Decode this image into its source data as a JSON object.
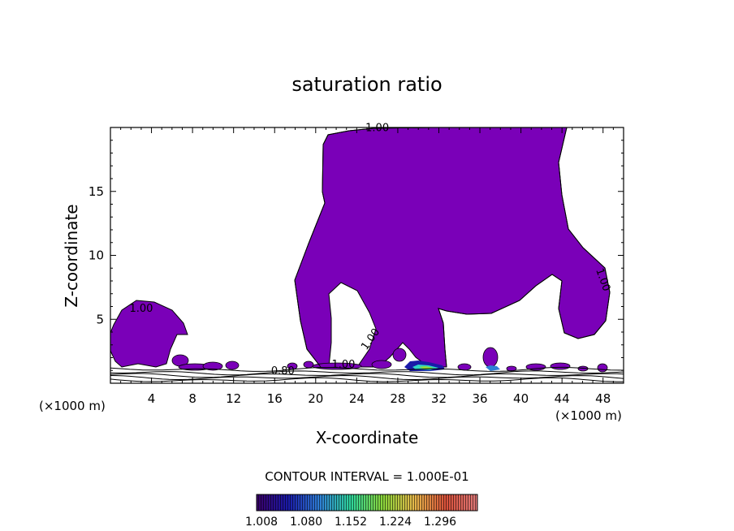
{
  "chart_data": {
    "type": "contour",
    "title": "saturation ratio",
    "xlabel": "X-coordinate",
    "ylabel": "Z-coordinate",
    "x_unit": "(×1000 m)",
    "x_unit_right": "(×1000 m)",
    "xlim": [
      0,
      50
    ],
    "ylim": [
      0,
      20
    ],
    "x_ticks": [
      4,
      8,
      12,
      16,
      20,
      24,
      28,
      32,
      36,
      40,
      44,
      48
    ],
    "y_ticks": [
      5,
      10,
      15
    ],
    "contour_interval_text": "CONTOUR INTERVAL = 1.000E-01",
    "contour_labels": [
      {
        "text": "1.00",
        "x": 26,
        "z": 19.7
      },
      {
        "text": "1.00",
        "x": 3.0,
        "z": 5.6
      },
      {
        "text": "1.00",
        "x": 47.7,
        "z": 8.0
      },
      {
        "text": "1.00",
        "x": 25.6,
        "z": 3.3
      },
      {
        "text": "1.00",
        "x": 22.7,
        "z": 1.2
      },
      {
        "text": "0.80",
        "x": 16.8,
        "z": 0.7
      }
    ],
    "filled_region_color": "#7a00b8",
    "colorbar": {
      "labels": [
        "1.008",
        "1.080",
        "1.152",
        "1.224",
        "1.296"
      ],
      "colors": [
        "#3a0068",
        "#1a1aa8",
        "#2f7fd6",
        "#2fd69a",
        "#8ad63a",
        "#e6b84a",
        "#d9503a",
        "#e07a7a"
      ]
    },
    "grid": false
  }
}
